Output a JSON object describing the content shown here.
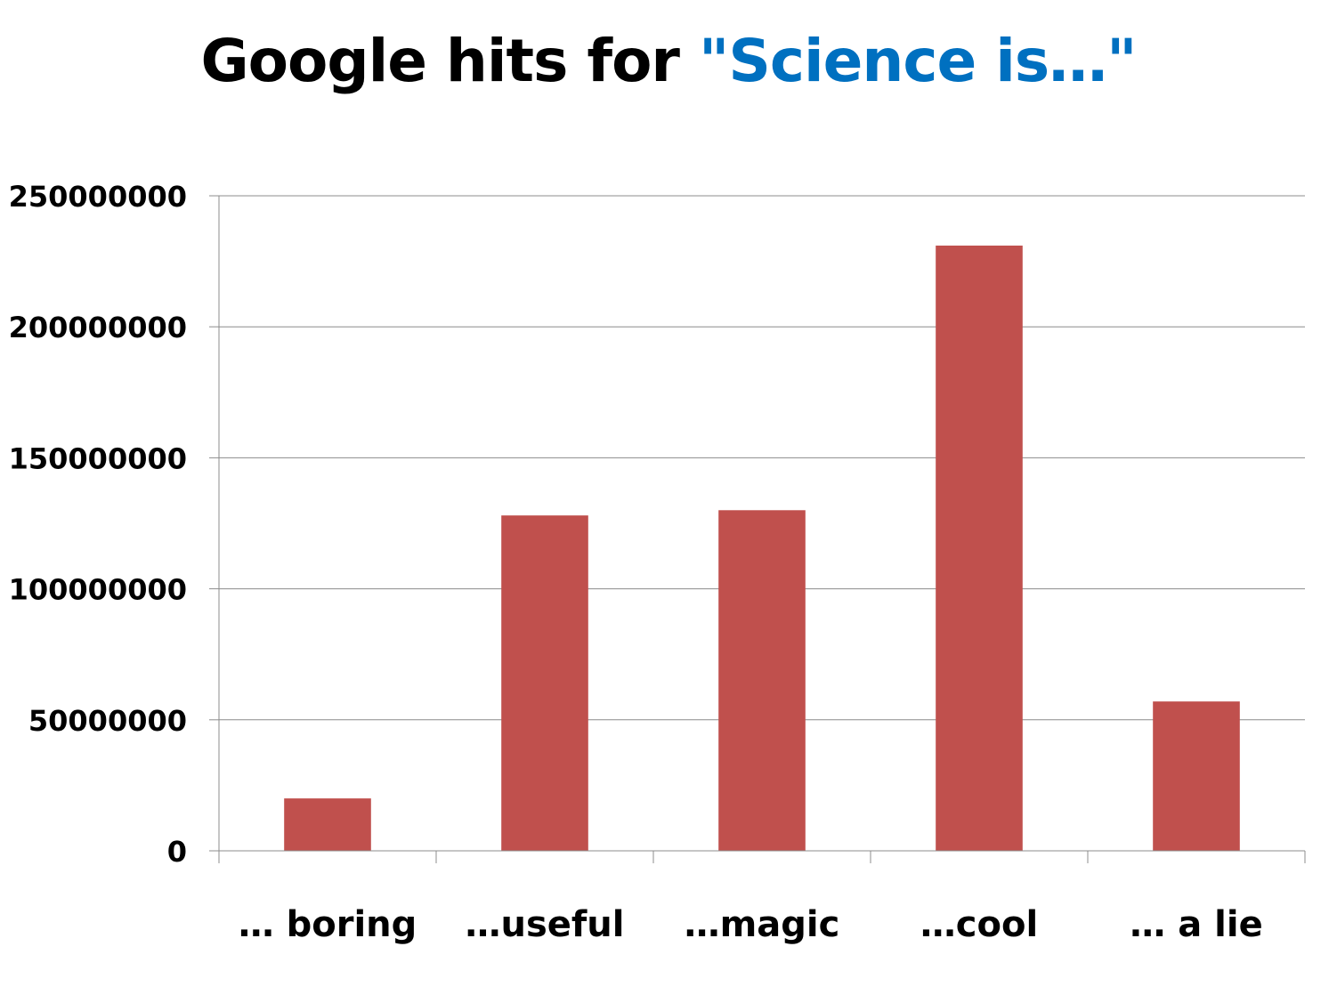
{
  "chart_data": {
    "type": "bar",
    "title": "Google hits for \"Science is…\"",
    "title_parts": [
      "Google hits for ",
      "\"Science is…\""
    ],
    "categories": [
      "… boring",
      "…useful",
      "…magic",
      "…cool",
      "… a lie"
    ],
    "values": [
      20000000,
      128000000,
      130000000,
      231000000,
      57000000
    ],
    "ylim": [
      0,
      250000000
    ],
    "yticks": [
      "0",
      "50000000",
      "100000000",
      "150000000",
      "200000000",
      "250000000"
    ],
    "grid": true,
    "legend": "none",
    "colors": {
      "bar": "#c0504d",
      "title_highlight": "#0070c0",
      "grid": "#8c8c8c",
      "axis": "#8c8c8c"
    }
  }
}
